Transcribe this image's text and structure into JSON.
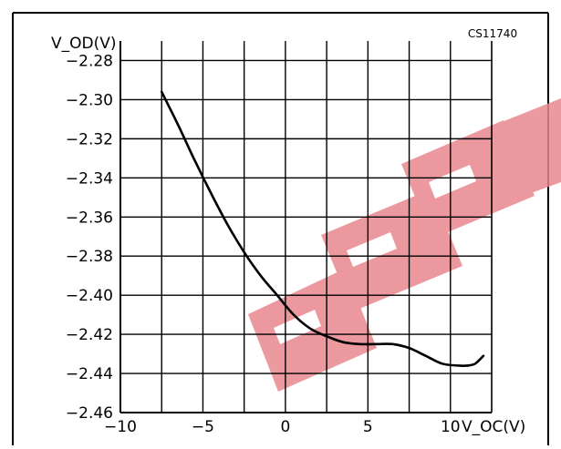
{
  "chart_data": {
    "type": "line",
    "code": "CS11740",
    "ylabel": "V_OD(V)",
    "xlabel": "V_OC(V)",
    "xlim": [
      -10,
      12.5
    ],
    "ylim": [
      -2.46,
      -2.27
    ],
    "x_ticks": [
      -10,
      -5,
      0,
      5,
      10
    ],
    "x_tick_labels": [
      "−10",
      "−5",
      "0",
      "5",
      "10"
    ],
    "y_ticks": [
      -2.28,
      -2.3,
      -2.32,
      -2.34,
      -2.36,
      -2.38,
      -2.4,
      -2.42,
      -2.44,
      -2.46
    ],
    "y_tick_labels": [
      "−2.28",
      "−2.30",
      "−2.32",
      "−2.34",
      "−2.36",
      "−2.38",
      "−2.40",
      "−2.42",
      "−2.44",
      "−2.46"
    ],
    "grid": true,
    "series": [
      {
        "x": [
          -7.5,
          -6.5,
          -5.5,
          -4.5,
          -3.5,
          -2.5,
          -1.5,
          -0.5,
          0.5,
          1.5,
          2.5,
          3.5,
          4.5,
          5.5,
          6.5,
          7.5,
          8.5,
          9.5,
          10.5,
          11.0,
          11.5,
          12.0
        ],
        "y": [
          -2.296,
          -2.313,
          -2.331,
          -2.348,
          -2.364,
          -2.378,
          -2.39,
          -2.4,
          -2.41,
          -2.417,
          -2.421,
          -2.424,
          -2.425,
          -2.425,
          -2.425,
          -2.427,
          -2.431,
          -2.435,
          -2.436,
          -2.436,
          -2.435,
          -2.431
        ]
      }
    ]
  },
  "watermark": "EEPW",
  "colors": {
    "grid": "#000000",
    "line": "#000000",
    "watermark": "#e8888e"
  }
}
